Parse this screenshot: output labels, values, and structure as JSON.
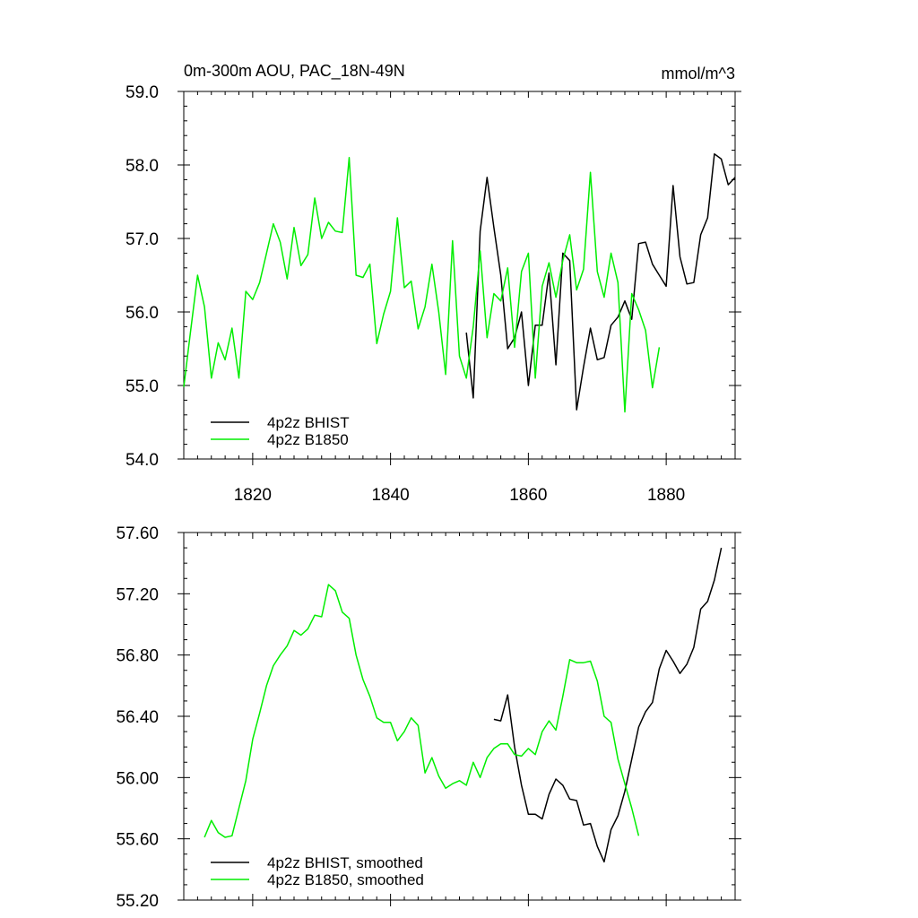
{
  "chart_data": [
    {
      "type": "line",
      "title": "0m-300m AOU, PAC_18N-49N",
      "units": "mmol/m^3",
      "xlim": [
        1810,
        1890
      ],
      "ylim": [
        54.0,
        59.0
      ],
      "x_ticks": [
        1820,
        1840,
        1860,
        1880
      ],
      "x_tick_labels": [
        "1820",
        "1840",
        "1860",
        "1880"
      ],
      "y_ticks": [
        54,
        55,
        56,
        57,
        58,
        59
      ],
      "y_tick_labels": [
        "54.0",
        "55.0",
        "56.0",
        "57.0",
        "58.0",
        "59.0"
      ],
      "legend_position": "bottom-left",
      "series": [
        {
          "name": "4p2z BHIST",
          "color": "#000000",
          "x_start": 1851,
          "values": [
            55.72,
            54.83,
            57.1,
            57.83,
            57.15,
            56.5,
            55.5,
            55.65,
            56.0,
            55.0,
            55.82,
            55.82,
            56.53,
            55.28,
            56.8,
            56.7,
            54.67,
            55.25,
            55.78,
            55.35,
            55.38,
            55.82,
            55.93,
            56.15,
            55.9,
            56.93,
            56.95,
            56.65,
            56.5,
            56.35,
            57.72,
            56.75,
            56.38,
            56.4,
            57.05,
            57.28,
            58.15,
            58.08,
            57.73,
            57.83
          ]
        },
        {
          "name": "4p2z B1850",
          "color": "#00ee00",
          "x_start": 1810,
          "values": [
            54.98,
            55.75,
            56.5,
            56.07,
            55.1,
            55.58,
            55.35,
            55.78,
            55.1,
            56.28,
            56.17,
            56.4,
            56.8,
            57.2,
            56.95,
            56.45,
            57.15,
            56.63,
            56.78,
            57.55,
            57.0,
            57.22,
            57.1,
            57.08,
            58.1,
            56.5,
            56.47,
            56.65,
            55.57,
            55.97,
            56.28,
            57.28,
            56.33,
            56.42,
            55.77,
            56.07,
            56.65,
            56.0,
            55.15,
            56.97,
            55.4,
            55.1,
            55.8,
            56.83,
            55.65,
            56.25,
            56.15,
            56.6,
            55.52,
            56.55,
            56.8,
            55.1,
            56.35,
            56.67,
            56.2,
            56.7,
            57.05,
            56.3,
            56.58,
            57.9,
            56.55,
            56.2,
            56.8,
            56.4,
            54.64,
            56.25,
            56.03,
            55.75,
            54.97,
            55.52
          ]
        }
      ]
    },
    {
      "type": "line",
      "xlim": [
        1810,
        1890
      ],
      "ylim": [
        55.2,
        57.6
      ],
      "x_ticks": [
        1820,
        1840,
        1860,
        1880
      ],
      "y_ticks": [
        55.2,
        55.6,
        56.0,
        56.4,
        56.8,
        57.2,
        57.6
      ],
      "y_tick_labels": [
        "55.20",
        "55.60",
        "56.00",
        "56.40",
        "56.80",
        "57.20",
        "57.60"
      ],
      "legend_position": "bottom-left",
      "series": [
        {
          "name": "4p2z BHIST, smoothed",
          "color": "#000000",
          "x_start": 1855,
          "values": [
            56.38,
            56.37,
            56.54,
            56.2,
            55.95,
            55.76,
            55.76,
            55.73,
            55.89,
            55.99,
            55.95,
            55.86,
            55.85,
            55.69,
            55.7,
            55.55,
            55.45,
            55.66,
            55.75,
            55.91,
            56.12,
            56.33,
            56.43,
            56.49,
            56.71,
            56.83,
            56.76,
            56.68,
            56.74,
            56.85,
            57.1,
            57.15,
            57.29,
            57.5
          ]
        },
        {
          "name": "4p2z B1850, smoothed",
          "color": "#00ee00",
          "x_start": 1813,
          "values": [
            55.61,
            55.72,
            55.64,
            55.61,
            55.62,
            55.8,
            55.98,
            56.25,
            56.42,
            56.6,
            56.73,
            56.8,
            56.86,
            56.96,
            56.93,
            56.97,
            57.06,
            57.05,
            57.26,
            57.22,
            57.08,
            57.04,
            56.8,
            56.64,
            56.53,
            56.39,
            56.36,
            56.36,
            56.24,
            56.3,
            56.39,
            56.34,
            56.03,
            56.13,
            56.01,
            55.93,
            55.96,
            55.98,
            55.95,
            56.1,
            56.0,
            56.13,
            56.19,
            56.22,
            56.22,
            56.15,
            56.14,
            56.19,
            56.15,
            56.3,
            56.37,
            56.31,
            56.53,
            56.77,
            56.75,
            56.75,
            56.76,
            56.63,
            56.4,
            56.36,
            56.12,
            55.96,
            55.8,
            55.62
          ]
        }
      ]
    }
  ]
}
